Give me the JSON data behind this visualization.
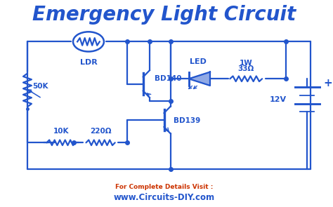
{
  "title": "Emergency Light Circuit",
  "title_color": "#2255cc",
  "title_fontsize": 20,
  "circuit_color": "#2255cc",
  "bg_color": "#ffffff",
  "footer_text1": "For Complete Details Visit :",
  "footer_text2": "www.Circuits-DIY.com",
  "footer_color1": "#cc3300",
  "footer_color2": "#2255cc",
  "lw": 1.6,
  "dot_size": 4.0
}
